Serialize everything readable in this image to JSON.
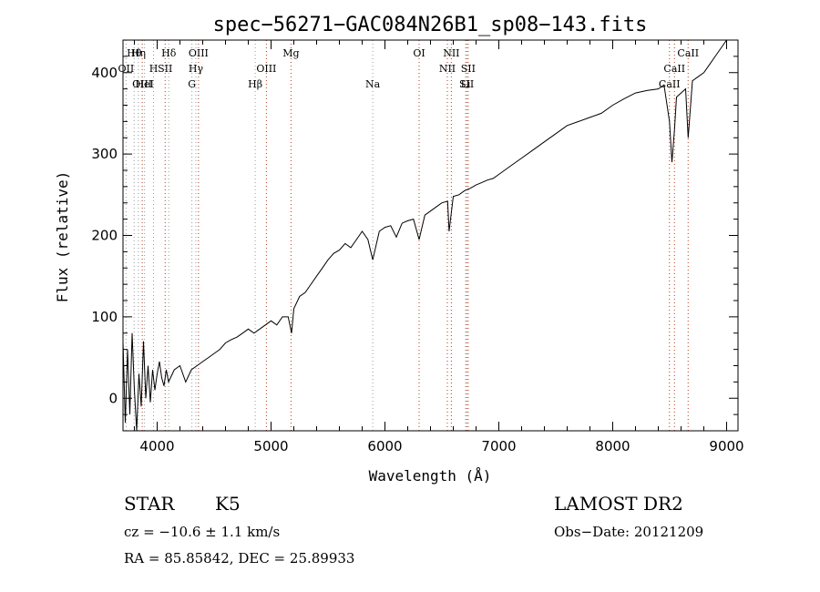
{
  "chart_data": {
    "type": "line",
    "title": "spec−56271−GAC084N26B1_sp08−143.fits",
    "xlabel": "Wavelength (Å)",
    "ylabel": "Flux (relative)",
    "xlim": [
      3700,
      9100
    ],
    "ylim": [
      -40,
      440
    ],
    "x_ticks": [
      4000,
      5000,
      6000,
      7000,
      8000,
      9000
    ],
    "y_ticks": [
      0,
      100,
      200,
      300,
      400
    ],
    "series": [
      {
        "x": [
          3700,
          3720,
          3740,
          3760,
          3780,
          3800,
          3820,
          3840,
          3860,
          3880,
          3900,
          3920,
          3940,
          3960,
          3980,
          4000,
          4020,
          4040,
          4060,
          4080,
          4100,
          4150,
          4200,
          4250,
          4300,
          4350,
          4400,
          4450,
          4500,
          4550,
          4600,
          4650,
          4700,
          4750,
          4800,
          4850,
          4900,
          4950,
          5000,
          5050,
          5100,
          5150,
          5180,
          5200,
          5250,
          5300,
          5350,
          5400,
          5450,
          5500,
          5550,
          5600,
          5650,
          5700,
          5750,
          5800,
          5850,
          5893,
          5950,
          6000,
          6050,
          6100,
          6150,
          6200,
          6250,
          6300,
          6350,
          6400,
          6450,
          6500,
          6550,
          6563,
          6600,
          6650,
          6700,
          6750,
          6800,
          6850,
          6900,
          6950,
          7000,
          7100,
          7200,
          7300,
          7400,
          7500,
          7600,
          7700,
          7800,
          7900,
          8000,
          8100,
          8200,
          8300,
          8400,
          8450,
          8498,
          8520,
          8542,
          8560,
          8600,
          8640,
          8662,
          8700,
          8750,
          8800,
          8850,
          8900,
          8950,
          9000
        ],
        "y": [
          70,
          -30,
          60,
          -20,
          80,
          10,
          -40,
          30,
          -10,
          70,
          0,
          40,
          -5,
          35,
          10,
          30,
          45,
          25,
          15,
          35,
          20,
          35,
          40,
          20,
          35,
          40,
          45,
          50,
          55,
          60,
          68,
          72,
          75,
          80,
          85,
          80,
          85,
          90,
          95,
          90,
          100,
          100,
          80,
          110,
          125,
          130,
          140,
          150,
          160,
          170,
          178,
          182,
          190,
          185,
          195,
          205,
          195,
          170,
          205,
          210,
          212,
          198,
          215,
          218,
          220,
          195,
          225,
          230,
          235,
          240,
          242,
          205,
          248,
          250,
          255,
          258,
          262,
          265,
          268,
          270,
          275,
          285,
          295,
          305,
          315,
          325,
          335,
          340,
          345,
          350,
          360,
          368,
          375,
          378,
          380,
          385,
          340,
          290,
          330,
          370,
          375,
          380,
          320,
          390,
          395,
          400,
          410,
          420,
          430,
          440
        ]
      }
    ],
    "spectral_lines": [
      {
        "label": "Hθ",
        "x": 3798,
        "color": "#9a9a9a"
      },
      {
        "label": "OII",
        "x": 3727,
        "color": "#9a9a9a"
      },
      {
        "label": "OIII",
        "x": 3869,
        "color": "#b33a1a"
      },
      {
        "label": "Hη",
        "x": 3835,
        "color": "#9a9a9a"
      },
      {
        "label": "H",
        "x": 3968,
        "color": "#9a9a9a"
      },
      {
        "label": "HeI",
        "x": 3889,
        "color": "#9a9a9a"
      },
      {
        "label": "Hδ",
        "x": 4102,
        "color": "#9a9a9a"
      },
      {
        "label": "SII",
        "x": 4070,
        "color": "#b33a1a"
      },
      {
        "label": "G",
        "x": 4305,
        "color": "#9a9a9a"
      },
      {
        "label": "OIII",
        "x": 4363,
        "color": "#b33a1a"
      },
      {
        "label": "Hγ",
        "x": 4340,
        "color": "#9a9a9a"
      },
      {
        "label": "Hβ",
        "x": 4861,
        "color": "#9a9a9a"
      },
      {
        "label": "Mg",
        "x": 5175,
        "color": "#b33a1a"
      },
      {
        "label": "OIII",
        "x": 4959,
        "color": "#b33a1a"
      },
      {
        "label": "Na",
        "x": 5893,
        "color": "#9a9a9a"
      },
      {
        "label": "OI",
        "x": 6300,
        "color": "#b33a1a"
      },
      {
        "label": "NII",
        "x": 6548,
        "color": "#b33a1a"
      },
      {
        "label": "SII",
        "x": 6717,
        "color": "#b33a1a"
      },
      {
        "label": "NII",
        "x": 6583,
        "color": "#b33a1a"
      },
      {
        "label": "SII",
        "x": 6731,
        "color": "#b33a1a"
      },
      {
        "label": "Li",
        "x": 6708,
        "color": "#9a9a9a"
      },
      {
        "label": "CaII",
        "x": 8662,
        "color": "#b33a1a"
      },
      {
        "label": "CaII",
        "x": 8542,
        "color": "#b33a1a"
      },
      {
        "label": "CaII",
        "x": 8498,
        "color": "#b33a1a"
      }
    ]
  },
  "info": {
    "object_class": "STAR",
    "subclass": "K5",
    "survey": "LAMOST DR2",
    "velocity": "cz = −10.6 ± 1.1 km/s",
    "obs_date": "Obs−Date: 20121209",
    "coords": "RA =  85.85842, DEC =  25.89933"
  }
}
